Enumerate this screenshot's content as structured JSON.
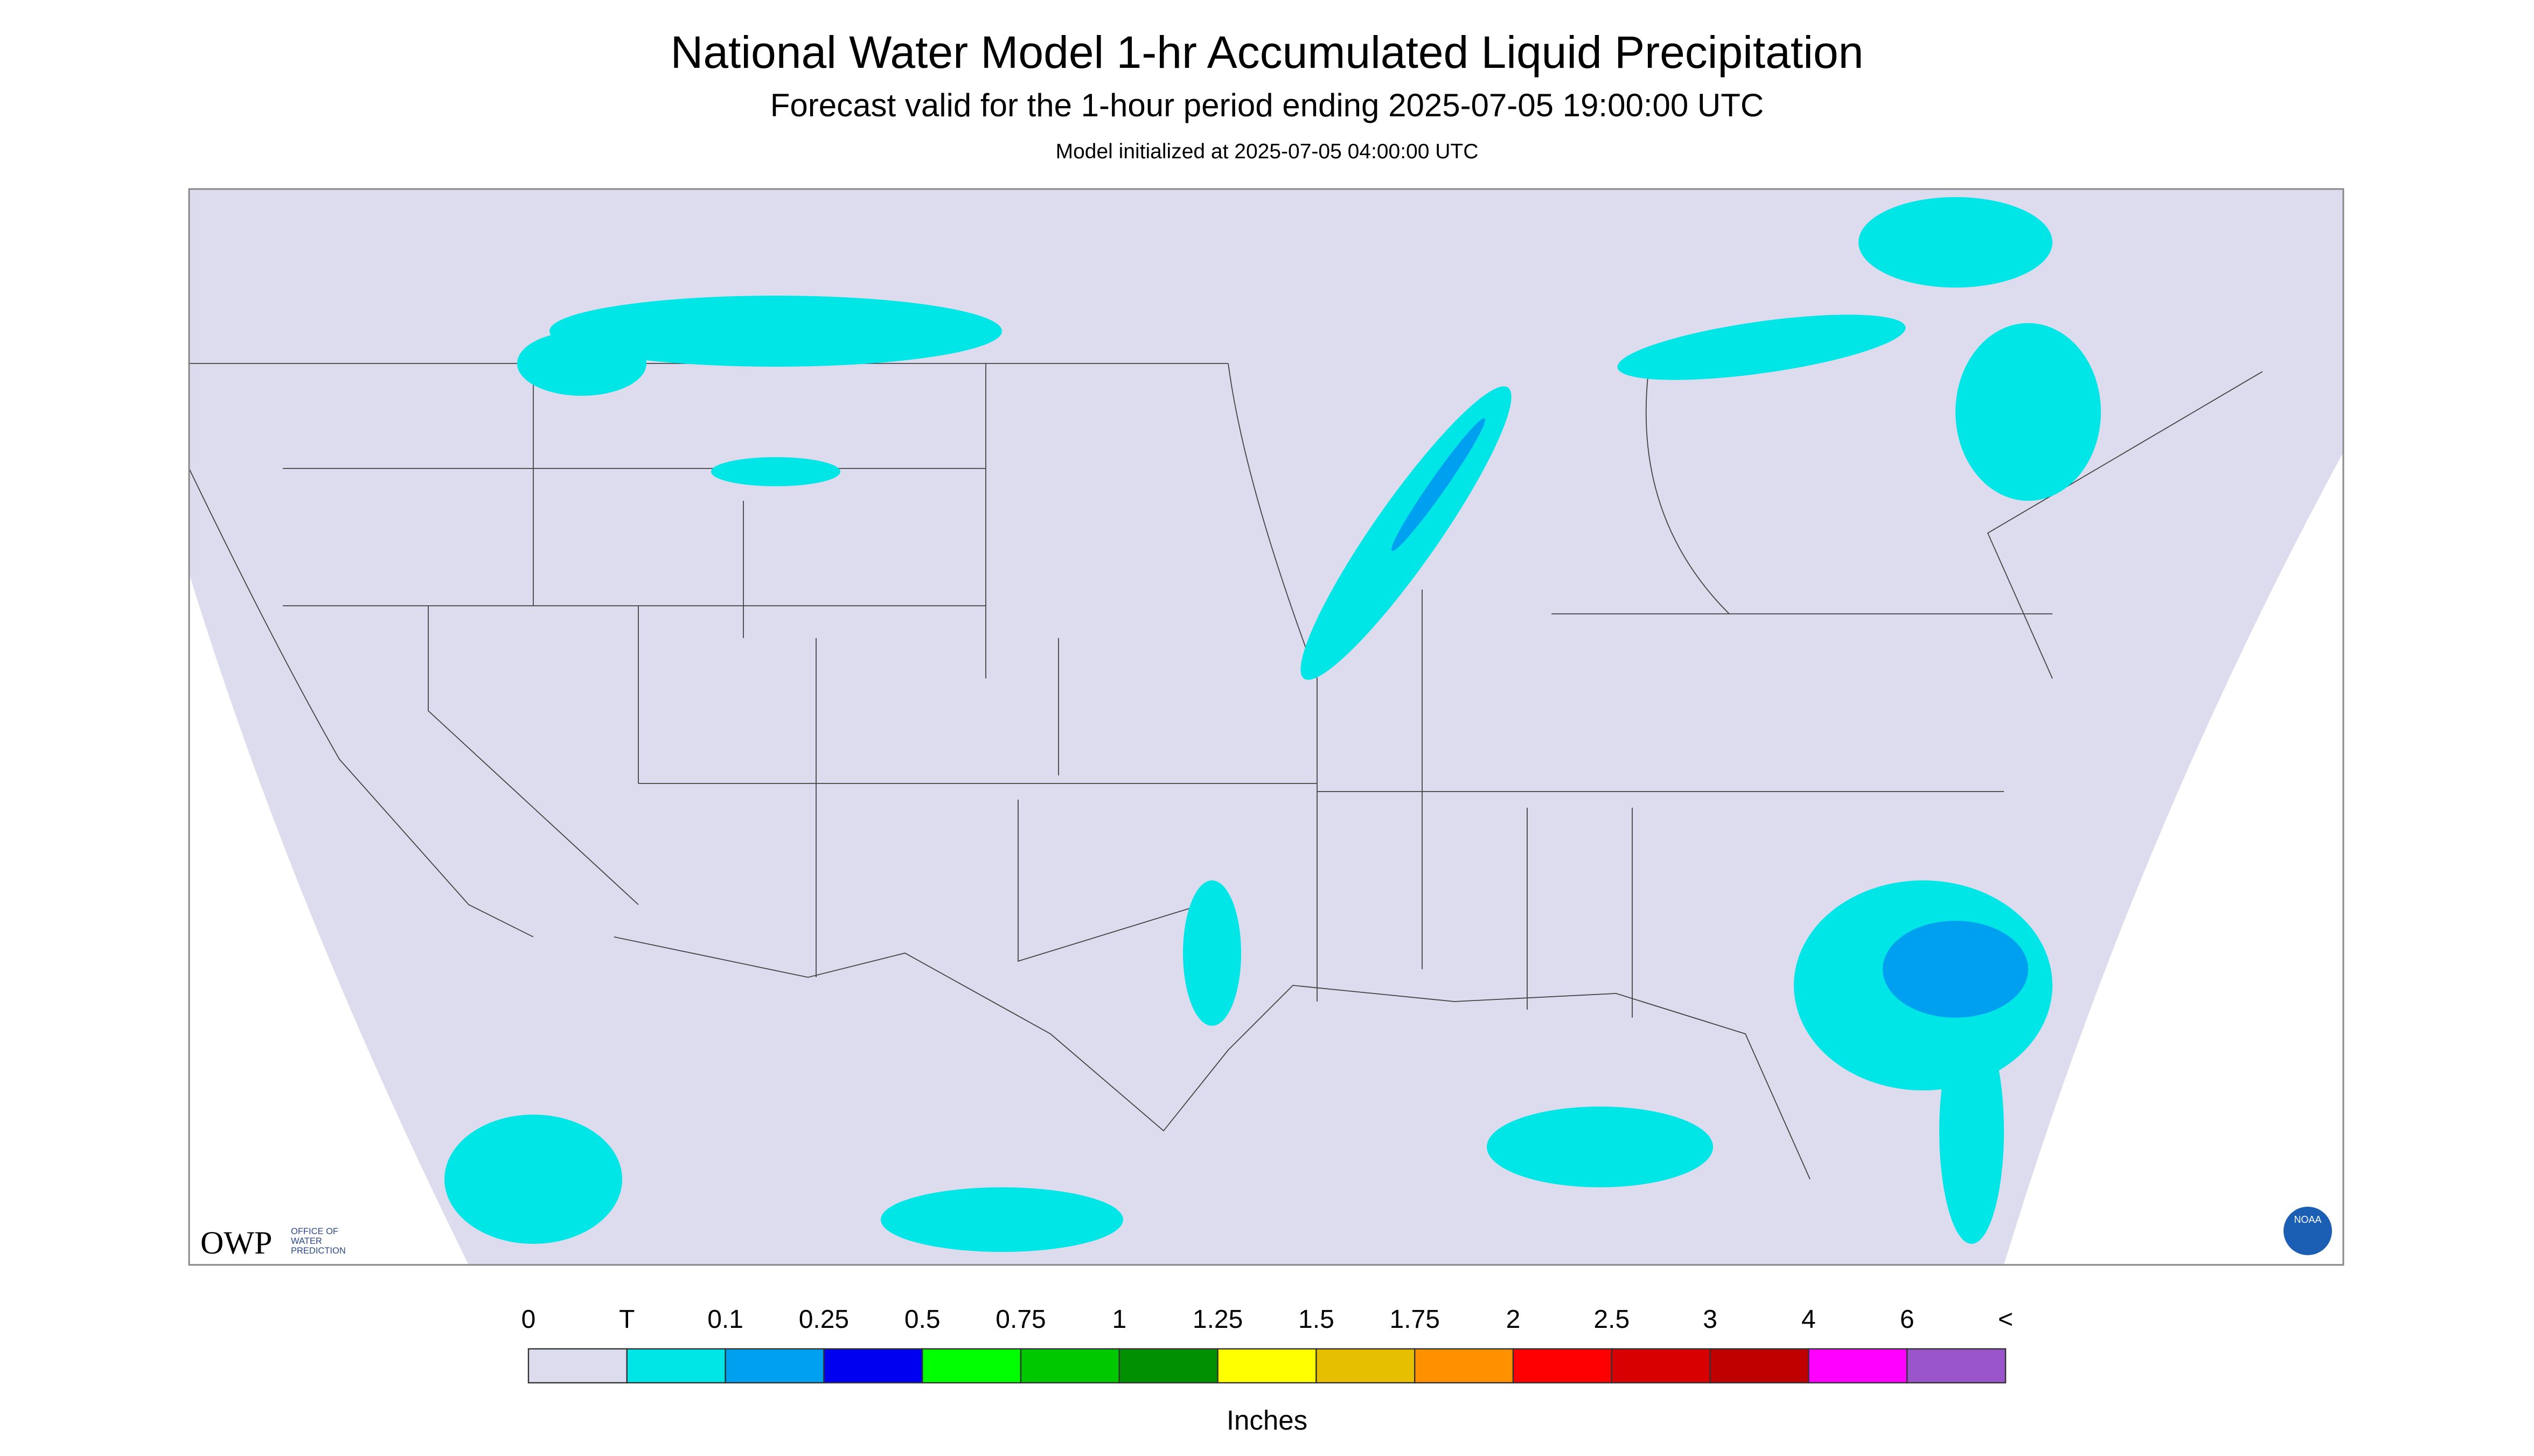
{
  "header": {
    "title": "National Water Model 1-hr Accumulated Liquid Precipitation",
    "subtitle": "Forecast valid for the 1-hour period ending 2025-07-05 19:00:00 UTC",
    "init": "Model initialized at 2025-07-05 04:00:00 UTC"
  },
  "logos": {
    "owp": "OWP",
    "owp_text": [
      "OFFICE OF",
      "WATER",
      "PREDICTION"
    ],
    "noaa": "NOAA"
  },
  "legend": {
    "labels": [
      "0",
      "T",
      "0.1",
      "0.25",
      "0.5",
      "0.75",
      "1",
      "1.25",
      "1.5",
      "1.75",
      "2",
      "2.5",
      "3",
      "4",
      "6",
      "<"
    ],
    "colors": [
      "#dcdcee",
      "#00e6e6",
      "#00a0f0",
      "#0000f0",
      "#00ff00",
      "#00c800",
      "#009000",
      "#ffff00",
      "#e6c000",
      "#ff9000",
      "#ff0000",
      "#d80000",
      "#c00000",
      "#ff00ff",
      "#9955c9"
    ],
    "units": "Inches"
  }
}
